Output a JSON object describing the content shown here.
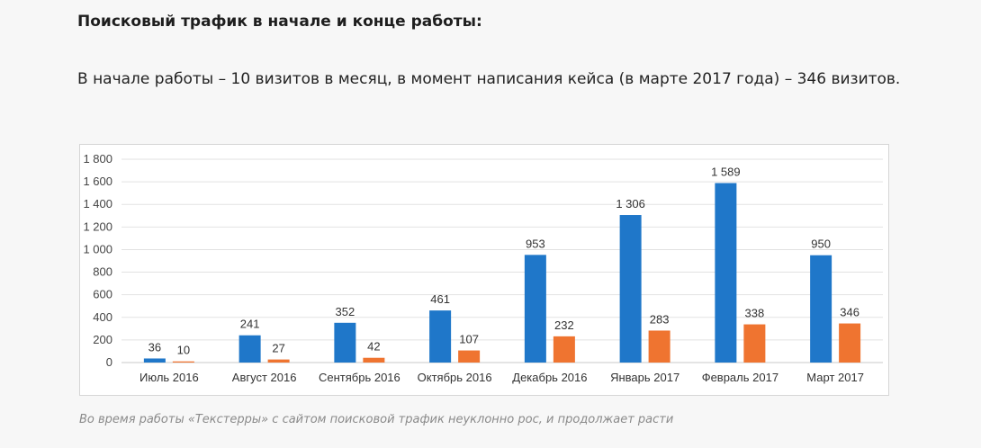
{
  "article": {
    "heading": "Поисковый трафик в начале и конце работы:",
    "lead": "В начале работы – 10 визитов в месяц, в момент написания кейса (в марте 2017 года) – 346 визитов.",
    "caption": "Во время работы «Текстерры» с сайтом поисковой трафик неуклонно рос, и продолжает расти"
  },
  "chart_data": {
    "type": "bar",
    "title": "",
    "xlabel": "",
    "ylabel": "",
    "ylim": [
      0,
      1800
    ],
    "yticks": [
      "0",
      "200",
      "400",
      "600",
      "800",
      "1 000",
      "1 200",
      "1 400",
      "1 600",
      "1 800"
    ],
    "grid": true,
    "legend": "none",
    "categories": [
      "Июль 2016",
      "Август 2016",
      "Сентябрь 2016",
      "Октябрь 2016",
      "Декабрь 2016",
      "Январь 2017",
      "Февраль 2017",
      "Март 2017"
    ],
    "series": [
      {
        "color": "#1f77c9",
        "values": [
          36,
          241,
          352,
          461,
          953,
          1306,
          1589,
          950
        ],
        "labels": [
          "36",
          "241",
          "352",
          "461",
          "953",
          "1 306",
          "1 589",
          "950"
        ]
      },
      {
        "color": "#ef7430",
        "values": [
          10,
          27,
          42,
          107,
          232,
          283,
          338,
          346
        ],
        "labels": [
          "10",
          "27",
          "42",
          "107",
          "232",
          "283",
          "338",
          "346"
        ]
      }
    ]
  }
}
